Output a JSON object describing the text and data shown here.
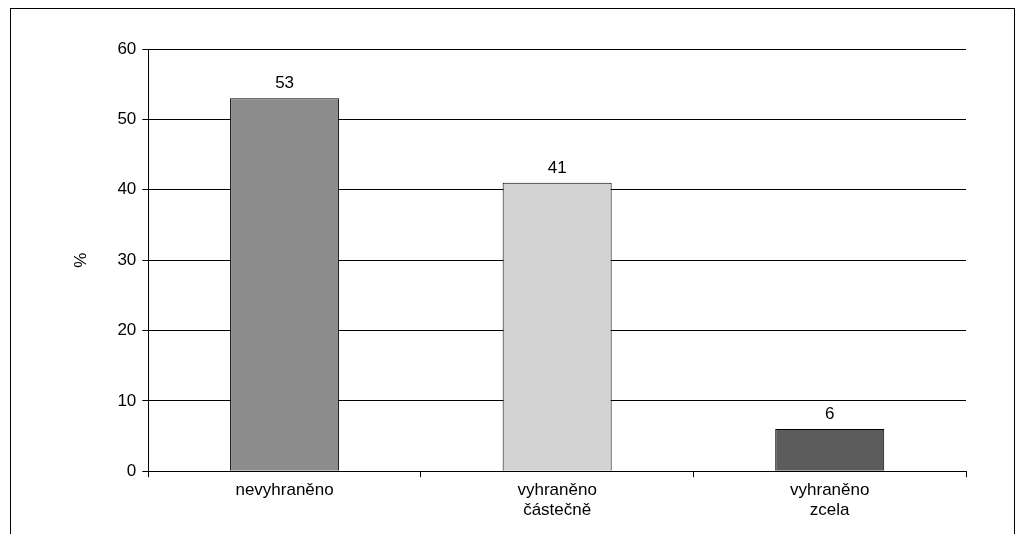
{
  "chart_data": {
    "type": "bar",
    "ylabel": "%",
    "categories": [
      "nevyhraněno",
      "vyhraněno částečně",
      "vyhraněno zcela"
    ],
    "values": [
      53,
      41,
      6
    ],
    "colors": [
      "#8c8c8c",
      "#d3d3d3",
      "#5c5c5c"
    ],
    "ylim": [
      0,
      60
    ],
    "yticks": [
      0,
      10,
      20,
      30,
      40,
      50,
      60
    ],
    "grid": "y",
    "data_labels": true
  }
}
